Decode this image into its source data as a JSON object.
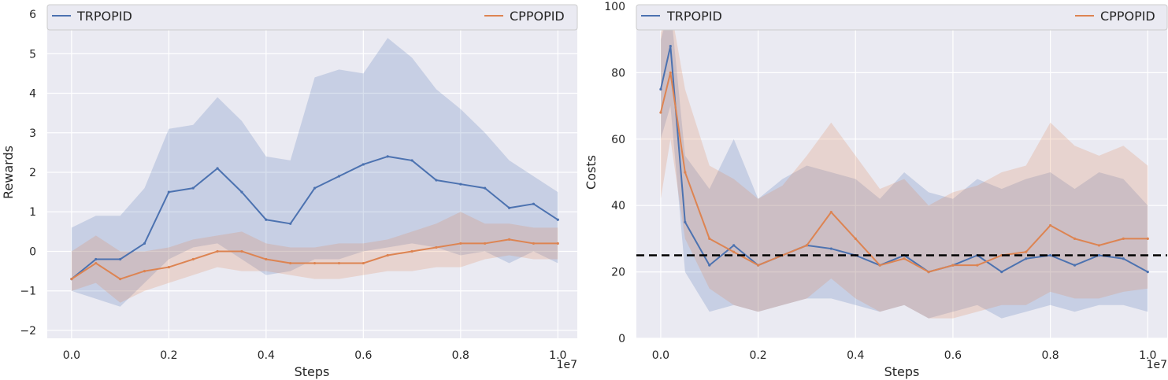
{
  "chart_data": [
    {
      "type": "line",
      "xlabel": "Steps",
      "ylabel": "Rewards",
      "x_scale_label": "1e7",
      "xlim": [
        -0.05,
        1.04
      ],
      "ylim": [
        -2.2,
        6.2
      ],
      "xticks": [
        0.0,
        0.2,
        0.4,
        0.6,
        0.8,
        1.0
      ],
      "xtick_labels": [
        "0.0",
        "0.2",
        "0.4",
        "0.6",
        "0.8",
        "1.0"
      ],
      "yticks": [
        -2,
        -1,
        0,
        1,
        2,
        3,
        4,
        5,
        6
      ],
      "ytick_labels": [
        "−2",
        "−1",
        "0",
        "1",
        "2",
        "3",
        "4",
        "5",
        "6"
      ],
      "grid": true,
      "legend": "top",
      "series": [
        {
          "name": "TRPOPID",
          "color": "#4c72b0",
          "x": [
            0.0,
            0.05,
            0.1,
            0.15,
            0.2,
            0.25,
            0.3,
            0.35,
            0.4,
            0.45,
            0.5,
            0.55,
            0.6,
            0.65,
            0.7,
            0.75,
            0.8,
            0.85,
            0.9,
            0.95,
            1.0
          ],
          "y": [
            -0.7,
            -0.2,
            -0.2,
            0.2,
            1.5,
            1.6,
            2.1,
            1.5,
            0.8,
            0.7,
            1.6,
            1.9,
            2.2,
            2.4,
            2.3,
            1.8,
            1.7,
            1.6,
            1.1,
            1.2,
            0.8
          ],
          "y_low": [
            -1.0,
            -1.2,
            -1.4,
            -0.8,
            -0.2,
            0.1,
            0.2,
            -0.2,
            -0.6,
            -0.5,
            -0.2,
            -0.2,
            0.0,
            0.1,
            0.2,
            0.1,
            -0.1,
            0.0,
            -0.3,
            0.0,
            -0.3
          ],
          "y_high": [
            0.6,
            0.9,
            0.9,
            1.6,
            3.1,
            3.2,
            3.9,
            3.3,
            2.4,
            2.3,
            4.4,
            4.6,
            4.5,
            5.4,
            4.9,
            4.1,
            3.6,
            3.0,
            2.3,
            1.9,
            1.5
          ]
        },
        {
          "name": "CPPOPID",
          "color": "#dd8452",
          "x": [
            0.0,
            0.05,
            0.1,
            0.15,
            0.2,
            0.25,
            0.3,
            0.35,
            0.4,
            0.45,
            0.5,
            0.55,
            0.6,
            0.65,
            0.7,
            0.75,
            0.8,
            0.85,
            0.9,
            0.95,
            1.0
          ],
          "y": [
            -0.7,
            -0.3,
            -0.7,
            -0.5,
            -0.4,
            -0.2,
            0.0,
            0.0,
            -0.2,
            -0.3,
            -0.3,
            -0.3,
            -0.3,
            -0.1,
            0.0,
            0.1,
            0.2,
            0.2,
            0.3,
            0.2,
            0.2
          ],
          "y_low": [
            -1.0,
            -0.8,
            -1.3,
            -1.0,
            -0.8,
            -0.6,
            -0.4,
            -0.5,
            -0.5,
            -0.6,
            -0.7,
            -0.7,
            -0.6,
            -0.5,
            -0.5,
            -0.4,
            -0.4,
            -0.2,
            -0.1,
            -0.2,
            -0.2
          ],
          "y_high": [
            0.0,
            0.4,
            0.0,
            0.0,
            0.1,
            0.3,
            0.4,
            0.5,
            0.2,
            0.1,
            0.1,
            0.2,
            0.2,
            0.3,
            0.5,
            0.7,
            1.0,
            0.7,
            0.7,
            0.6,
            0.6
          ]
        }
      ]
    },
    {
      "type": "line",
      "xlabel": "Steps",
      "ylabel": "Costs",
      "x_scale_label": "1e7",
      "xlim": [
        -0.05,
        1.04
      ],
      "ylim": [
        0,
        100
      ],
      "xticks": [
        0.0,
        0.2,
        0.4,
        0.6,
        0.8,
        1.0
      ],
      "xtick_labels": [
        "0.0",
        "0.2",
        "0.4",
        "0.6",
        "0.8",
        "1.0"
      ],
      "yticks": [
        0,
        20,
        40,
        60,
        80,
        100
      ],
      "ytick_labels": [
        "0",
        "20",
        "40",
        "60",
        "80",
        "100"
      ],
      "grid": true,
      "legend": "top",
      "threshold": {
        "y": 25,
        "color": "#000000",
        "style": "dashed"
      },
      "series": [
        {
          "name": "TRPOPID",
          "color": "#4c72b0",
          "x": [
            0.0,
            0.02,
            0.05,
            0.1,
            0.15,
            0.2,
            0.25,
            0.3,
            0.35,
            0.4,
            0.45,
            0.5,
            0.55,
            0.6,
            0.65,
            0.7,
            0.75,
            0.8,
            0.85,
            0.9,
            0.95,
            1.0
          ],
          "y": [
            75,
            88,
            35,
            22,
            28,
            22,
            25,
            28,
            27,
            25,
            22,
            25,
            20,
            22,
            25,
            20,
            24,
            25,
            22,
            25,
            24,
            20
          ],
          "y_low": [
            60,
            70,
            20,
            8,
            10,
            8,
            10,
            12,
            12,
            10,
            8,
            10,
            6,
            8,
            10,
            6,
            8,
            10,
            8,
            10,
            10,
            8
          ],
          "y_high": [
            90,
            100,
            55,
            45,
            60,
            42,
            48,
            52,
            50,
            48,
            42,
            50,
            44,
            42,
            48,
            45,
            48,
            50,
            45,
            50,
            48,
            40
          ]
        },
        {
          "name": "CPPOPID",
          "color": "#dd8452",
          "x": [
            0.0,
            0.02,
            0.05,
            0.1,
            0.15,
            0.2,
            0.25,
            0.3,
            0.35,
            0.4,
            0.45,
            0.5,
            0.55,
            0.6,
            0.65,
            0.7,
            0.75,
            0.8,
            0.85,
            0.9,
            0.95,
            1.0
          ],
          "y": [
            68,
            80,
            50,
            30,
            26,
            22,
            25,
            28,
            38,
            30,
            22,
            24,
            20,
            22,
            22,
            25,
            26,
            34,
            30,
            28,
            30,
            30
          ],
          "y_low": [
            42,
            60,
            30,
            15,
            10,
            8,
            10,
            12,
            18,
            12,
            8,
            10,
            6,
            6,
            8,
            10,
            10,
            14,
            12,
            12,
            14,
            15
          ],
          "y_high": [
            92,
            100,
            75,
            52,
            48,
            42,
            46,
            55,
            65,
            55,
            45,
            48,
            40,
            44,
            46,
            50,
            52,
            65,
            58,
            55,
            58,
            52
          ]
        }
      ]
    }
  ]
}
